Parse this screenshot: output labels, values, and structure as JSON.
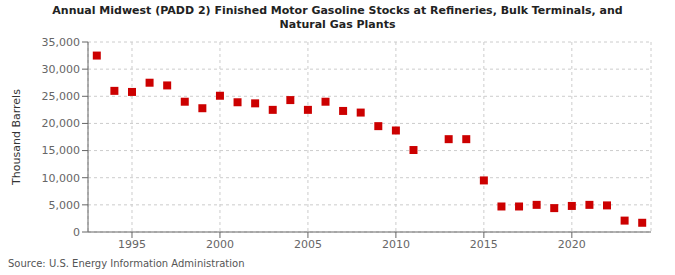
{
  "chart_data": {
    "type": "scatter",
    "title": "Annual Midwest (PADD 2) Finished Motor Gasoline Stocks at Refineries, Bulk Terminals, and\nNatural Gas Plants",
    "ylabel": "Thousand Barrels",
    "source": "Source: U.S. Energy Information Administration",
    "color": "#cc0000",
    "marker": "square",
    "grid": true,
    "xlim": [
      1992.5,
      2024.5
    ],
    "ylim": [
      0,
      35000
    ],
    "xticks": [
      1995,
      2000,
      2005,
      2010,
      2015,
      2020
    ],
    "yticks": [
      0,
      {
        "value": 5000,
        "label": "5,000"
      },
      {
        "value": 10000,
        "label": "10,000"
      },
      {
        "value": 15000,
        "label": "15,000"
      },
      {
        "value": 20000,
        "label": "20,000"
      },
      {
        "value": 25000,
        "label": "25,000"
      },
      {
        "value": 30000,
        "label": "30,000"
      },
      {
        "value": 35000,
        "label": "35,000"
      }
    ],
    "x": [
      1993,
      1994,
      1995,
      1996,
      1997,
      1998,
      1999,
      2000,
      2001,
      2002,
      2003,
      2004,
      2005,
      2006,
      2007,
      2008,
      2009,
      2010,
      2011,
      2013,
      2014,
      2015,
      2016,
      2017,
      2018,
      2019,
      2020,
      2021,
      2022,
      2023,
      2024
    ],
    "values": [
      32500,
      26000,
      25800,
      27500,
      27000,
      24000,
      22800,
      25100,
      23900,
      23700,
      22500,
      24300,
      22500,
      24000,
      22300,
      22000,
      19500,
      18700,
      15100,
      17100,
      17100,
      9500,
      4700,
      4700,
      5000,
      4400,
      4800,
      5000,
      4900,
      2100,
      1700
    ]
  }
}
